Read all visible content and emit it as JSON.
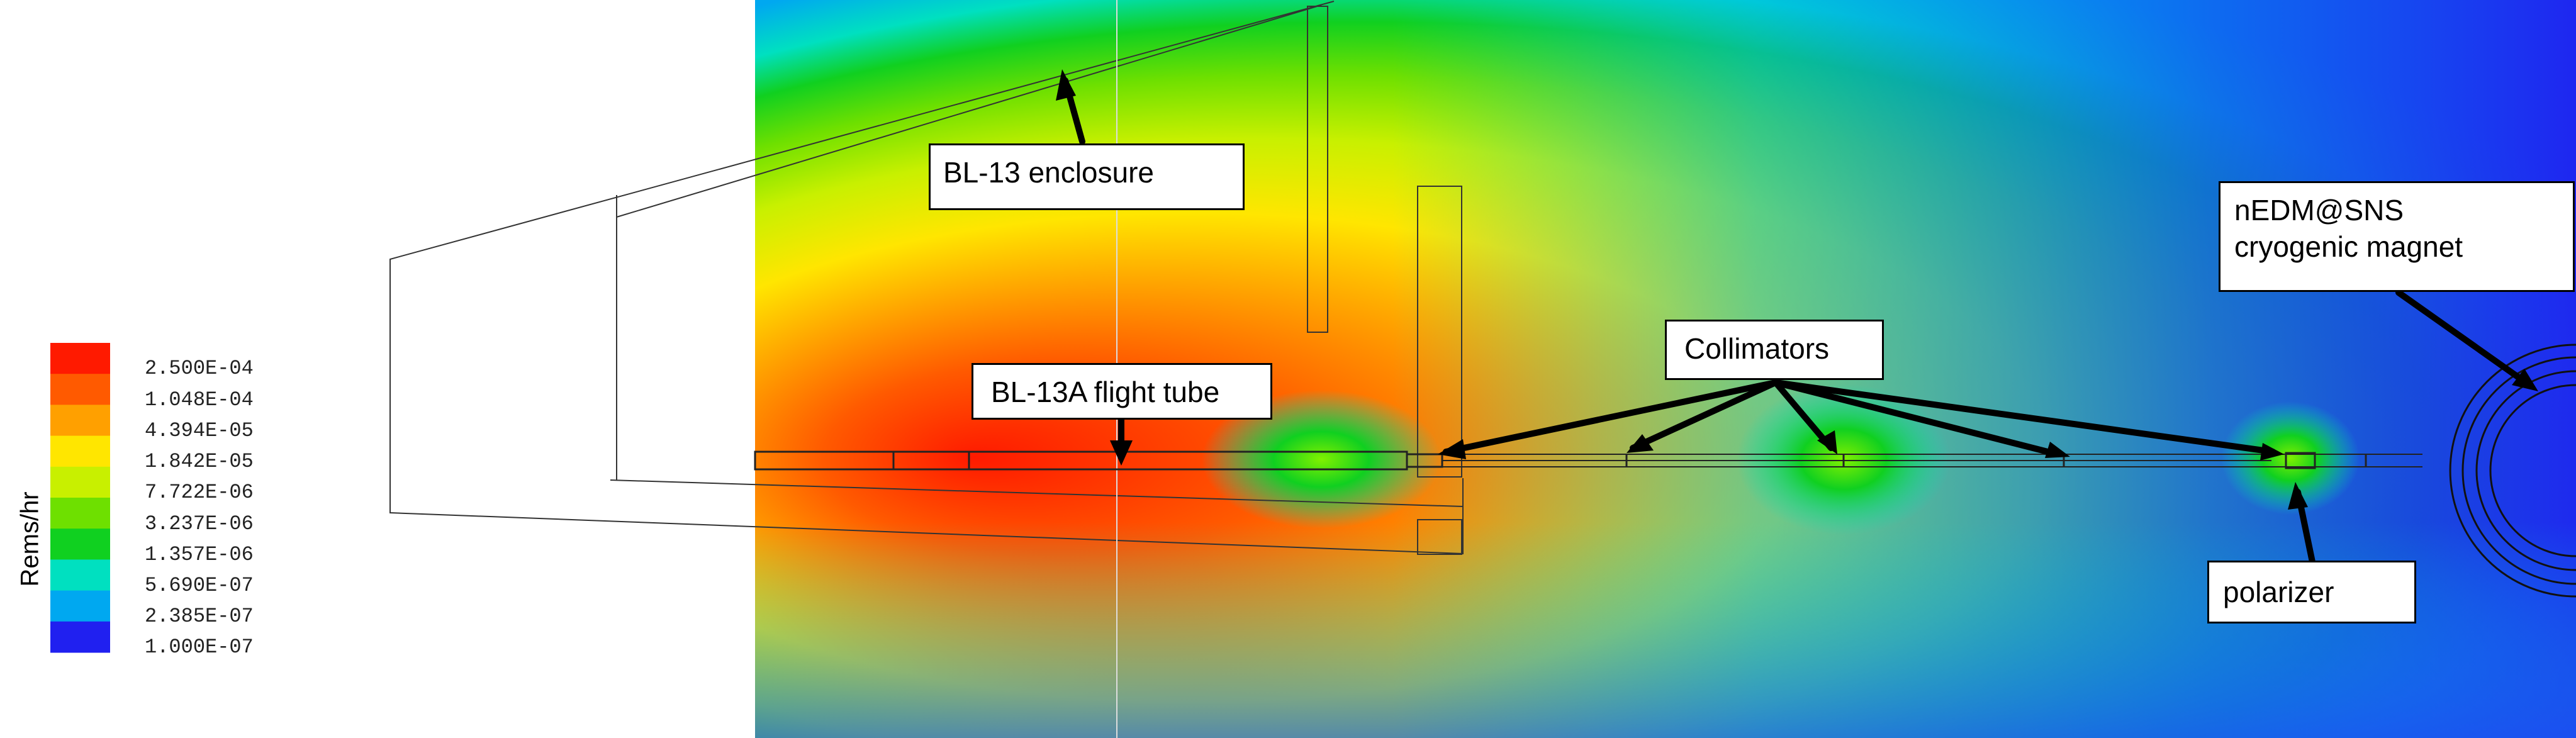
{
  "legend": {
    "unit_label": "Rems/hr",
    "entries": [
      {
        "value": "2.500E-04",
        "color": "#ff1a00"
      },
      {
        "value": "1.048E-04",
        "color": "#ff5a00"
      },
      {
        "value": "4.394E-05",
        "color": "#ffa000"
      },
      {
        "value": "1.842E-05",
        "color": "#ffe600"
      },
      {
        "value": "7.722E-06",
        "color": "#c8f000"
      },
      {
        "value": "3.237E-06",
        "color": "#6ee000"
      },
      {
        "value": "1.357E-06",
        "color": "#10d020"
      },
      {
        "value": "5.690E-07",
        "color": "#00e0c0"
      },
      {
        "value": "2.385E-07",
        "color": "#00a8f0"
      },
      {
        "value": "1.000E-07",
        "color": "#2020f0"
      }
    ]
  },
  "labels": {
    "enclosure": "BL-13 enclosure",
    "flight_tube": "BL-13A flight tube",
    "collimators": "Collimators",
    "magnet_line1": "nEDM@SNS",
    "magnet_line2": "cryogenic magnet",
    "polarizer": "polarizer"
  }
}
